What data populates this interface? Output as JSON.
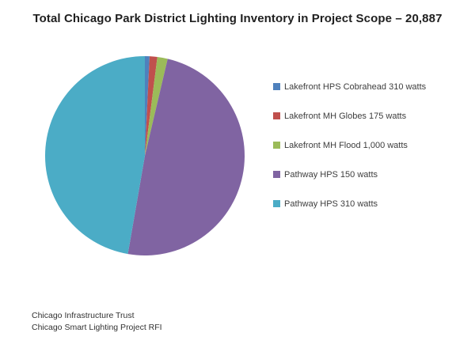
{
  "title": "Total Chicago Park District Lighting Inventory in Project Scope – 20,887",
  "footer": {
    "line1": "Chicago Infrastructure Trust",
    "line2": "Chicago Smart Lighting Project RFI"
  },
  "chart_data": {
    "type": "pie",
    "title": "Total Chicago Park District Lighting Inventory in Project Scope – 20,887",
    "total": 20887,
    "start_angle_deg": 0,
    "direction": "clockwise",
    "legend_position": "right",
    "background_color": "#ffffff",
    "slices": [
      {
        "label": "Lakefront HPS Cobrahead 310 watts",
        "value": 157,
        "percent": 0.75,
        "angle_deg": 2.7,
        "color": "#4F81BD"
      },
      {
        "label": "Lakefront MH Globes 175 watts",
        "value": 261,
        "percent": 1.25,
        "angle_deg": 4.5,
        "color": "#C0504D"
      },
      {
        "label": "Lakefront MH Flood 1,000 watts",
        "value": 349,
        "percent": 1.67,
        "angle_deg": 6.0,
        "color": "#9BBB59"
      },
      {
        "label": "Pathway HPS 150 watts",
        "value": 10247,
        "percent": 49.06,
        "angle_deg": 176.6,
        "color": "#8064A2"
      },
      {
        "label": "Pathway HPS 310 watts",
        "value": 9873,
        "percent": 47.27,
        "angle_deg": 170.2,
        "color": "#4BACC6"
      }
    ]
  }
}
